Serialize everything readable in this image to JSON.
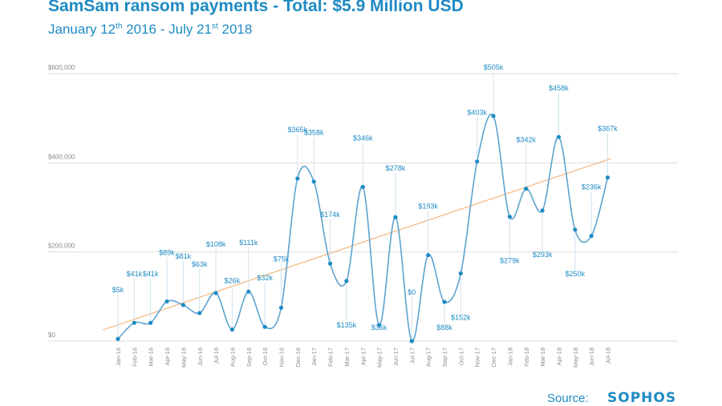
{
  "header": {
    "title": "SamSam ransom payments - Total: $5.9 Million USD",
    "subtitle_start": "January 12",
    "subtitle_start_sup": "th",
    "subtitle_mid": " 2016 - July 21",
    "subtitle_end_sup": "st",
    "subtitle_end": " 2018"
  },
  "footer": {
    "source_label": "Source:",
    "logo_text": "SOPHOS"
  },
  "colors": {
    "accent": "#1e8bc3",
    "line": "#5da3cf",
    "trend": "#f2b77f",
    "grid": "#dddddd",
    "axis_text": "#8a8a8a"
  },
  "chart_data": {
    "type": "line",
    "title": "SamSam ransom payments - Total: $5.9 Million USD",
    "ylim": [
      0,
      600000
    ],
    "yticks": [
      0,
      200000,
      400000,
      600000
    ],
    "ytick_labels": [
      "$0",
      "$200,000",
      "$400,000",
      "$600,000"
    ],
    "grid": true,
    "categories": [
      "Jan-16",
      "Feb-16",
      "Mar-16",
      "Apr-16",
      "May-16",
      "Jun-16",
      "Jul-16",
      "Aug-16",
      "Sep-16",
      "Oct-16",
      "Nov-16",
      "Dec-16",
      "Jan-17",
      "Feb-17",
      "Mar-17",
      "Apr-17",
      "May-17",
      "Jun-17",
      "Jul-17",
      "Aug-17",
      "Sep-17",
      "Oct-17",
      "Nov-17",
      "Dec-17",
      "Jan-18",
      "Feb-18",
      "Mar-18",
      "Apr-18",
      "May-18",
      "Jun-18",
      "Jul-18"
    ],
    "values": [
      5000,
      41000,
      41000,
      89000,
      81000,
      63000,
      108000,
      26000,
      111000,
      32000,
      75000,
      365000,
      358000,
      174000,
      135000,
      346000,
      36000,
      278000,
      0,
      193000,
      88000,
      152000,
      403000,
      505000,
      279000,
      342000,
      293000,
      458000,
      250000,
      236000,
      367000
    ],
    "labels": [
      "$5k",
      "$41k",
      "$41k",
      "$89k",
      "$81k",
      "$63k",
      "$108k",
      "$26k",
      "$111k",
      "$32k",
      "$75k",
      "$365k",
      "$358k",
      "$174k",
      "$135k",
      "$346k",
      "$36k",
      "$278k",
      "$0",
      "$193k",
      "$88k",
      "$152k",
      "$403k",
      "$505k",
      "$279k",
      "$342k",
      "$293k",
      "$458k",
      "$250k",
      "$236k",
      "$367k"
    ],
    "label_positions": [
      "above",
      "above",
      "above",
      "above",
      "above",
      "above",
      "above",
      "above",
      "above",
      "above",
      "above",
      "above",
      "above",
      "above",
      "below",
      "above",
      "below",
      "above",
      "above",
      "above",
      "below",
      "below",
      "above",
      "above",
      "below",
      "above",
      "below",
      "above",
      "below",
      "above",
      "above"
    ],
    "trendline": {
      "visible": true,
      "y_start": 25000,
      "y_end": 410000
    }
  }
}
